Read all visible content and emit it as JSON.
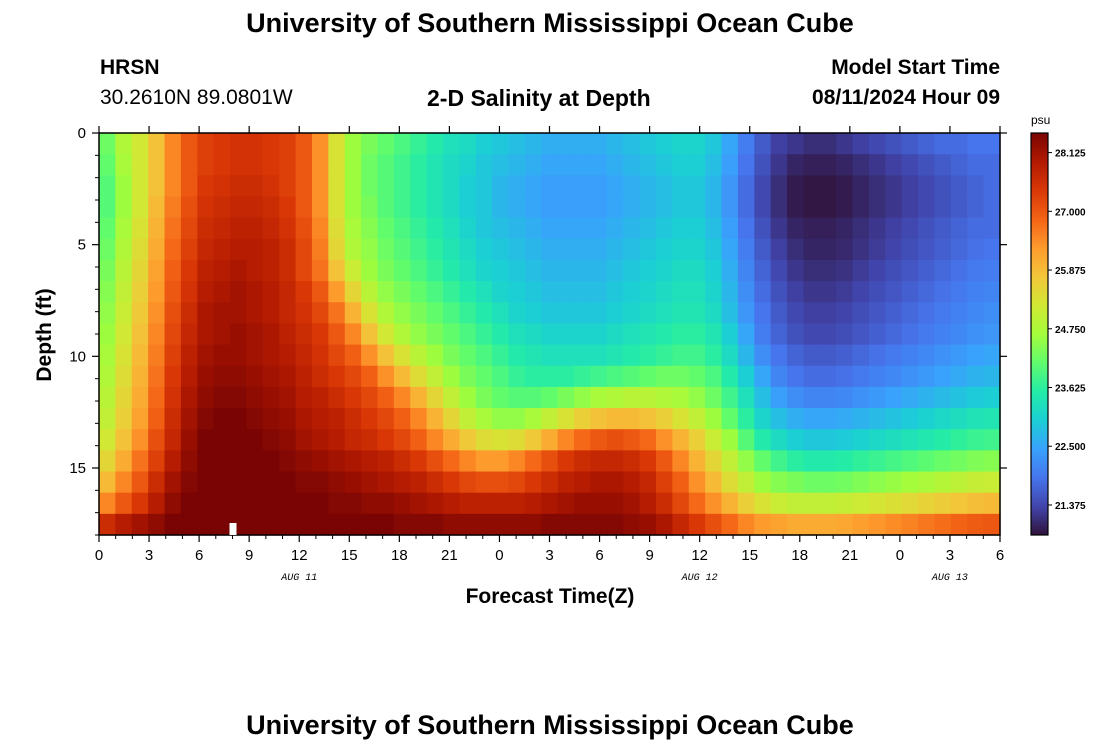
{
  "header": {
    "title": "University of Southern Mississippi Ocean Cube",
    "station_code": "HRSN",
    "station_coords": "30.2610N  89.0801W",
    "plot_title": "2-D Salinity at Depth",
    "model_start_label": "Model Start Time",
    "model_start_value": "08/11/2024 Hour 09",
    "footer_title": "University of Southern Mississippi Ocean Cube"
  },
  "chart_data": {
    "type": "heatmap",
    "title": "2-D Salinity at Depth",
    "xlabel": "Forecast Time(Z)",
    "ylabel": "Depth (ft)",
    "x_tick_labels": [
      "0",
      "3",
      "6",
      "9",
      "12",
      "15",
      "18",
      "21",
      "0",
      "3",
      "6",
      "9",
      "12",
      "15",
      "18",
      "21",
      "0",
      "3",
      "6"
    ],
    "date_labels": [
      "AUG 11",
      "AUG 12",
      "AUG 13"
    ],
    "x_range_hours": [
      0,
      54
    ],
    "y_tick_labels": [
      "0",
      "5",
      "10",
      "15"
    ],
    "ylim": [
      0,
      18
    ],
    "y_inverted": true,
    "colorbar_unit": "psu",
    "colorbar_ticks": [
      "28.125",
      "27.000",
      "25.875",
      "24.750",
      "23.625",
      "22.500",
      "21.375"
    ],
    "value_range": [
      20.8,
      28.5
    ],
    "colormap": [
      "#30123b",
      "#4145ab",
      "#4675ed",
      "#39a2fc",
      "#1bcfd4",
      "#24eca6",
      "#61fc6c",
      "#a4fc3b",
      "#d1e834",
      "#f3c63a",
      "#fe9b2d",
      "#f36315",
      "#d93806",
      "#b11901",
      "#7a0403"
    ],
    "salinity_grid_note": "rows = depth 0..18 ft (1 ft steps), columns = forecast hours 0..54 (1 h steps)",
    "grid": [
      [
        24.2,
        24.8,
        25.2,
        25.8,
        26.5,
        27.0,
        27.3,
        27.4,
        27.5,
        27.5,
        27.4,
        27.3,
        27.0,
        26.4,
        25.3,
        24.6,
        24.3,
        24.1,
        23.9,
        23.7,
        23.5,
        23.3,
        23.2,
        23.0,
        22.9,
        22.8,
        22.7,
        22.6,
        22.6,
        22.6,
        22.6,
        22.7,
        22.8,
        22.9,
        23.0,
        23.1,
        23.1,
        22.9,
        22.5,
        22.0,
        21.6,
        21.3,
        21.2,
        21.1,
        21.1,
        21.2,
        21.3,
        21.4,
        21.5,
        21.6,
        21.7,
        21.8,
        21.8,
        21.9,
        21.9
      ],
      [
        24.1,
        24.7,
        25.2,
        25.8,
        26.5,
        27.0,
        27.3,
        27.4,
        27.5,
        27.5,
        27.4,
        27.3,
        27.0,
        26.4,
        25.3,
        24.6,
        24.2,
        24.0,
        23.8,
        23.6,
        23.4,
        23.2,
        23.1,
        22.9,
        22.8,
        22.7,
        22.6,
        22.5,
        22.5,
        22.5,
        22.5,
        22.6,
        22.7,
        22.8,
        22.9,
        23.0,
        23.0,
        22.8,
        22.4,
        21.9,
        21.5,
        21.2,
        21.0,
        20.95,
        20.95,
        21.0,
        21.1,
        21.2,
        21.3,
        21.4,
        21.5,
        21.6,
        21.7,
        21.8,
        21.8
      ],
      [
        24.0,
        24.6,
        25.2,
        25.8,
        26.5,
        27.0,
        27.4,
        27.5,
        27.6,
        27.6,
        27.5,
        27.3,
        27.0,
        26.4,
        25.3,
        24.6,
        24.2,
        24.0,
        23.8,
        23.6,
        23.4,
        23.2,
        23.0,
        22.9,
        22.7,
        22.6,
        22.5,
        22.4,
        22.4,
        22.4,
        22.4,
        22.5,
        22.6,
        22.7,
        22.8,
        22.9,
        22.9,
        22.7,
        22.3,
        21.8,
        21.4,
        21.1,
        20.9,
        20.85,
        20.85,
        20.9,
        21.0,
        21.1,
        21.2,
        21.3,
        21.4,
        21.5,
        21.6,
        21.7,
        21.8
      ],
      [
        24.0,
        24.6,
        25.2,
        25.9,
        26.6,
        27.1,
        27.5,
        27.6,
        27.7,
        27.7,
        27.6,
        27.4,
        27.0,
        26.4,
        25.3,
        24.6,
        24.3,
        24.0,
        23.8,
        23.6,
        23.4,
        23.2,
        23.0,
        22.9,
        22.7,
        22.6,
        22.5,
        22.4,
        22.4,
        22.4,
        22.4,
        22.5,
        22.6,
        22.7,
        22.8,
        22.9,
        22.9,
        22.7,
        22.3,
        21.8,
        21.4,
        21.1,
        20.9,
        20.85,
        20.85,
        20.9,
        21.0,
        21.1,
        21.2,
        21.3,
        21.4,
        21.5,
        21.6,
        21.7,
        21.8
      ],
      [
        24.1,
        24.7,
        25.3,
        26.0,
        26.7,
        27.2,
        27.6,
        27.7,
        27.8,
        27.8,
        27.7,
        27.5,
        27.1,
        26.5,
        25.4,
        24.7,
        24.4,
        24.1,
        23.9,
        23.7,
        23.5,
        23.3,
        23.1,
        22.9,
        22.8,
        22.7,
        22.6,
        22.5,
        22.5,
        22.5,
        22.5,
        22.6,
        22.7,
        22.8,
        22.9,
        23.0,
        23.0,
        22.8,
        22.4,
        21.9,
        21.5,
        21.2,
        21.0,
        20.95,
        20.95,
        21.0,
        21.1,
        21.2,
        21.3,
        21.4,
        21.5,
        21.6,
        21.7,
        21.8,
        21.8
      ],
      [
        24.2,
        24.8,
        25.4,
        26.1,
        26.8,
        27.3,
        27.7,
        27.8,
        27.9,
        27.9,
        27.8,
        27.6,
        27.2,
        26.6,
        25.5,
        24.8,
        24.5,
        24.2,
        24.0,
        23.8,
        23.6,
        23.4,
        23.2,
        23.0,
        22.9,
        22.8,
        22.7,
        22.6,
        22.6,
        22.6,
        22.6,
        22.7,
        22.8,
        22.9,
        23.0,
        23.1,
        23.1,
        22.9,
        22.5,
        22.0,
        21.6,
        21.3,
        21.1,
        21.0,
        21.0,
        21.05,
        21.15,
        21.25,
        21.35,
        21.45,
        21.55,
        21.65,
        21.75,
        21.85,
        21.9
      ],
      [
        24.3,
        24.9,
        25.5,
        26.2,
        26.9,
        27.4,
        27.8,
        27.9,
        28.0,
        27.9,
        27.8,
        27.6,
        27.2,
        26.7,
        25.8,
        25.1,
        24.6,
        24.3,
        24.1,
        23.9,
        23.7,
        23.5,
        23.3,
        23.1,
        23.0,
        22.9,
        22.8,
        22.7,
        22.7,
        22.7,
        22.7,
        22.8,
        22.9,
        23.0,
        23.1,
        23.2,
        23.2,
        23.0,
        22.6,
        22.1,
        21.7,
        21.4,
        21.2,
        21.1,
        21.1,
        21.15,
        21.25,
        21.35,
        21.45,
        21.55,
        21.65,
        21.75,
        21.85,
        21.95,
        22.0
      ],
      [
        24.4,
        25.0,
        25.6,
        26.3,
        27.0,
        27.5,
        27.9,
        28.0,
        28.1,
        28.0,
        27.9,
        27.7,
        27.4,
        27.0,
        26.3,
        25.5,
        24.9,
        24.5,
        24.3,
        24.1,
        23.9,
        23.7,
        23.5,
        23.3,
        23.1,
        23.0,
        22.9,
        22.8,
        22.8,
        22.8,
        22.8,
        22.9,
        23.0,
        23.1,
        23.2,
        23.3,
        23.3,
        23.1,
        22.7,
        22.2,
        21.8,
        21.5,
        21.3,
        21.2,
        21.2,
        21.25,
        21.35,
        21.45,
        21.55,
        21.65,
        21.75,
        21.85,
        21.95,
        22.05,
        22.1
      ],
      [
        24.5,
        25.1,
        25.7,
        26.4,
        27.1,
        27.6,
        28.0,
        28.1,
        28.1,
        28.0,
        27.9,
        27.7,
        27.5,
        27.2,
        26.7,
        26.0,
        25.3,
        24.8,
        24.5,
        24.3,
        24.1,
        23.9,
        23.7,
        23.5,
        23.3,
        23.1,
        23.0,
        22.9,
        22.9,
        22.9,
        22.9,
        23.0,
        23.1,
        23.2,
        23.3,
        23.4,
        23.4,
        23.2,
        22.8,
        22.3,
        21.9,
        21.6,
        21.4,
        21.3,
        21.3,
        21.35,
        21.45,
        21.55,
        21.65,
        21.75,
        21.85,
        21.95,
        22.05,
        22.15,
        22.2
      ],
      [
        24.6,
        25.2,
        25.8,
        26.5,
        27.2,
        27.7,
        28.0,
        28.1,
        28.2,
        28.1,
        28.0,
        27.8,
        27.6,
        27.4,
        27.0,
        26.5,
        25.8,
        25.2,
        24.8,
        24.5,
        24.3,
        24.1,
        23.9,
        23.7,
        23.5,
        23.3,
        23.2,
        23.1,
        23.1,
        23.1,
        23.1,
        23.2,
        23.3,
        23.4,
        23.5,
        23.6,
        23.6,
        23.4,
        23.0,
        22.5,
        22.0,
        21.7,
        21.5,
        21.4,
        21.4,
        21.45,
        21.55,
        21.65,
        21.75,
        21.85,
        21.95,
        22.05,
        22.15,
        22.25,
        22.3
      ],
      [
        24.7,
        25.3,
        25.9,
        26.6,
        27.3,
        27.8,
        28.1,
        28.2,
        28.2,
        28.1,
        28.0,
        27.9,
        27.7,
        27.5,
        27.2,
        26.9,
        26.4,
        25.8,
        25.3,
        24.9,
        24.6,
        24.3,
        24.1,
        23.9,
        23.7,
        23.5,
        23.4,
        23.3,
        23.3,
        23.3,
        23.3,
        23.4,
        23.5,
        23.6,
        23.7,
        23.8,
        23.8,
        23.6,
        23.2,
        22.7,
        22.2,
        21.9,
        21.7,
        21.6,
        21.6,
        21.65,
        21.75,
        21.85,
        21.95,
        22.05,
        22.15,
        22.25,
        22.35,
        22.45,
        22.5
      ],
      [
        24.8,
        25.4,
        26.0,
        26.7,
        27.4,
        27.9,
        28.2,
        28.3,
        28.3,
        28.2,
        28.1,
        28.0,
        27.8,
        27.6,
        27.4,
        27.2,
        26.9,
        26.4,
        25.9,
        25.4,
        25.0,
        24.6,
        24.3,
        24.1,
        23.9,
        23.7,
        23.6,
        23.6,
        23.6,
        23.7,
        23.8,
        23.9,
        24.0,
        24.1,
        24.2,
        24.2,
        24.1,
        23.9,
        23.5,
        23.0,
        22.5,
        22.1,
        21.9,
        21.8,
        21.8,
        21.85,
        21.95,
        22.05,
        22.15,
        22.25,
        22.35,
        22.45,
        22.55,
        22.65,
        22.7
      ],
      [
        24.9,
        25.5,
        26.1,
        26.8,
        27.5,
        28.0,
        28.3,
        28.4,
        28.4,
        28.3,
        28.2,
        28.1,
        27.9,
        27.8,
        27.6,
        27.4,
        27.2,
        26.9,
        26.5,
        26.0,
        25.5,
        25.0,
        24.6,
        24.3,
        24.1,
        24.0,
        24.0,
        24.1,
        24.3,
        24.5,
        24.7,
        24.8,
        24.9,
        24.9,
        24.8,
        24.7,
        24.5,
        24.2,
        23.8,
        23.3,
        22.8,
        22.4,
        22.2,
        22.1,
        22.1,
        22.15,
        22.25,
        22.35,
        22.45,
        22.55,
        22.65,
        22.75,
        22.85,
        22.95,
        23.0
      ],
      [
        25.0,
        25.6,
        26.2,
        26.9,
        27.6,
        28.1,
        28.4,
        28.5,
        28.5,
        28.4,
        28.3,
        28.2,
        28.0,
        27.9,
        27.8,
        27.6,
        27.4,
        27.2,
        26.9,
        26.5,
        26.0,
        25.5,
        25.0,
        24.7,
        24.5,
        24.5,
        24.7,
        25.0,
        25.3,
        25.6,
        25.8,
        25.9,
        25.9,
        25.8,
        25.6,
        25.3,
        25.0,
        24.6,
        24.1,
        23.6,
        23.1,
        22.8,
        22.6,
        22.5,
        22.5,
        22.55,
        22.65,
        22.75,
        22.85,
        22.95,
        23.05,
        23.15,
        23.25,
        23.35,
        23.4
      ],
      [
        25.2,
        25.8,
        26.4,
        27.1,
        27.7,
        28.2,
        28.5,
        28.5,
        28.5,
        28.5,
        28.4,
        28.3,
        28.1,
        28.0,
        27.9,
        27.7,
        27.6,
        27.4,
        27.2,
        26.9,
        26.5,
        26.1,
        25.7,
        25.4,
        25.3,
        25.4,
        25.7,
        26.1,
        26.5,
        26.8,
        27.0,
        27.1,
        27.0,
        26.8,
        26.4,
        26.0,
        25.6,
        25.1,
        24.6,
        24.0,
        23.5,
        23.2,
        23.0,
        22.9,
        22.9,
        22.95,
        23.05,
        23.15,
        23.25,
        23.35,
        23.45,
        23.55,
        23.65,
        23.75,
        23.8
      ],
      [
        25.5,
        26.1,
        26.7,
        27.3,
        27.9,
        28.3,
        28.5,
        28.6,
        28.6,
        28.5,
        28.5,
        28.4,
        28.3,
        28.2,
        28.1,
        28.0,
        27.9,
        27.8,
        27.6,
        27.4,
        27.1,
        26.8,
        26.5,
        26.3,
        26.3,
        26.5,
        26.8,
        27.1,
        27.4,
        27.6,
        27.7,
        27.7,
        27.6,
        27.4,
        27.0,
        26.5,
        26.0,
        25.5,
        25.0,
        24.5,
        24.1,
        23.8,
        23.6,
        23.5,
        23.5,
        23.55,
        23.65,
        23.75,
        23.85,
        23.95,
        24.05,
        24.15,
        24.25,
        24.35,
        24.4
      ],
      [
        25.9,
        26.5,
        27.0,
        27.6,
        28.1,
        28.4,
        28.6,
        28.7,
        28.7,
        28.6,
        28.6,
        28.5,
        28.4,
        28.4,
        28.3,
        28.2,
        28.1,
        28.0,
        27.9,
        27.8,
        27.6,
        27.4,
        27.2,
        27.1,
        27.1,
        27.2,
        27.4,
        27.6,
        27.8,
        27.9,
        28.0,
        28.0,
        27.9,
        27.7,
        27.3,
        26.9,
        26.4,
        25.9,
        25.4,
        25.0,
        24.6,
        24.4,
        24.3,
        24.2,
        24.2,
        24.25,
        24.35,
        24.45,
        24.55,
        24.65,
        24.75,
        24.85,
        24.95,
        25.05,
        25.1
      ],
      [
        26.5,
        27.0,
        27.4,
        27.9,
        28.3,
        28.5,
        28.7,
        28.7,
        28.7,
        28.7,
        28.6,
        28.6,
        28.5,
        28.5,
        28.4,
        28.4,
        28.3,
        28.3,
        28.2,
        28.1,
        28.0,
        27.9,
        27.8,
        27.8,
        27.8,
        27.8,
        27.9,
        28.0,
        28.1,
        28.2,
        28.2,
        28.2,
        28.1,
        27.9,
        27.6,
        27.2,
        26.8,
        26.4,
        26.0,
        25.6,
        25.3,
        25.1,
        25.0,
        25.0,
        25.0,
        25.05,
        25.15,
        25.25,
        25.35,
        25.45,
        25.55,
        25.65,
        25.75,
        25.85,
        25.9
      ],
      [
        27.6,
        27.9,
        28.1,
        28.3,
        28.5,
        28.6,
        28.7,
        28.7,
        28.7,
        28.7,
        28.7,
        28.7,
        28.6,
        28.6,
        28.6,
        28.5,
        28.5,
        28.5,
        28.4,
        28.4,
        28.4,
        28.3,
        28.3,
        28.3,
        28.3,
        28.3,
        28.3,
        28.4,
        28.4,
        28.4,
        28.4,
        28.4,
        28.3,
        28.2,
        28.0,
        27.7,
        27.4,
        27.1,
        26.8,
        26.5,
        26.3,
        26.2,
        26.1,
        26.1,
        26.1,
        26.15,
        26.25,
        26.35,
        26.45,
        26.55,
        26.65,
        26.75,
        26.85,
        26.95,
        27.0
      ]
    ]
  }
}
